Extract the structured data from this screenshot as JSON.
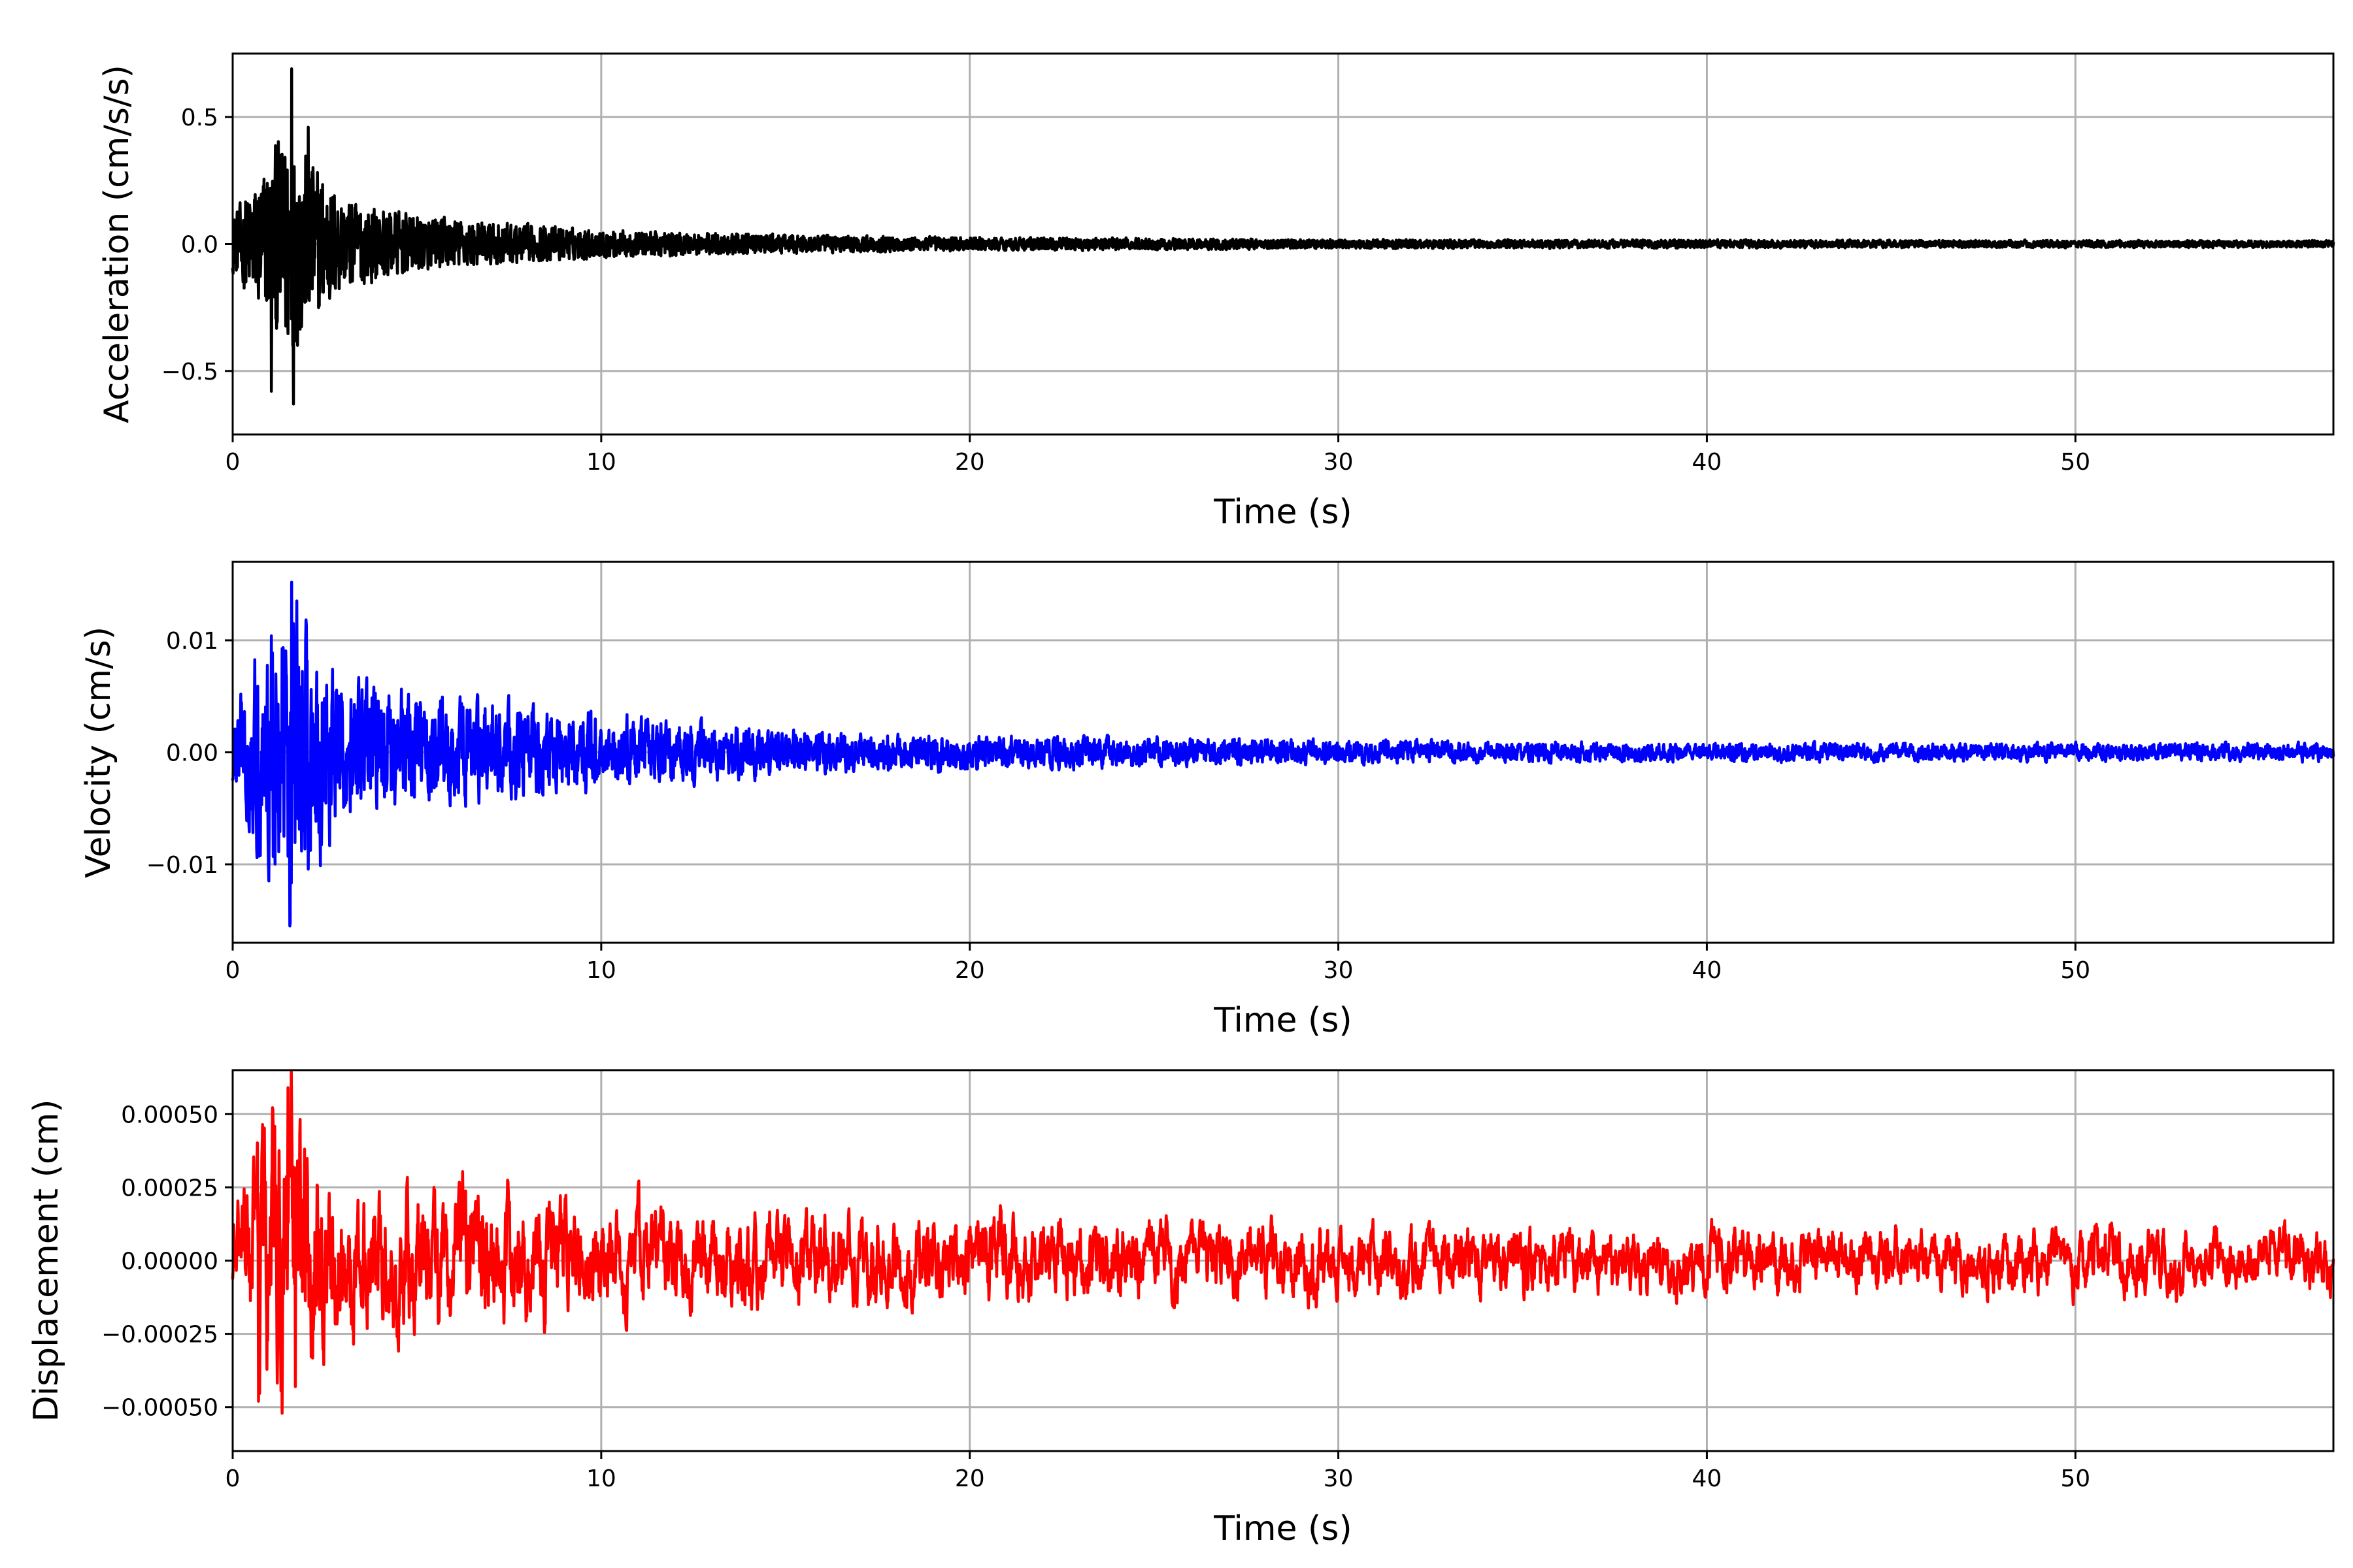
{
  "chart_data": [
    {
      "type": "line",
      "xlabel": "Time (s)",
      "ylabel": "Acceleration (cm/s/s)",
      "xlim": [
        0,
        57
      ],
      "ylim": [
        -0.75,
        0.75
      ],
      "xticks": [
        0,
        10,
        20,
        30,
        40,
        50
      ],
      "yticks": [
        -0.5,
        0.0,
        0.5
      ],
      "ytick_labels": [
        "−0.5",
        "0.0",
        "0.5"
      ],
      "grid": true,
      "color": "#000000",
      "peak_values": [
        {
          "x": 1.6,
          "y": 0.69
        },
        {
          "x": 1.65,
          "y": -0.63
        },
        {
          "x": 1.05,
          "y": -0.58
        },
        {
          "x": 2.05,
          "y": 0.46
        }
      ],
      "envelope": {
        "t": [
          0,
          1.5,
          3,
          5,
          10,
          15,
          20,
          30,
          40,
          57
        ],
        "amp": [
          0.12,
          0.5,
          0.2,
          0.12,
          0.06,
          0.04,
          0.03,
          0.02,
          0.018,
          0.015
        ]
      }
    },
    {
      "type": "line",
      "xlabel": "Time (s)",
      "ylabel": "Velocity (cm/s)",
      "xlim": [
        0,
        57
      ],
      "ylim": [
        -0.017,
        0.017
      ],
      "xticks": [
        0,
        10,
        20,
        30,
        40,
        50
      ],
      "yticks": [
        -0.01,
        0.0,
        0.01
      ],
      "ytick_labels": [
        "−0.01",
        "0.00",
        "0.01"
      ],
      "grid": true,
      "color": "#0000ff",
      "peak_values": [
        {
          "x": 1.6,
          "y": 0.0152
        },
        {
          "x": 1.55,
          "y": -0.0155
        },
        {
          "x": 1.05,
          "y": 0.0104
        },
        {
          "x": 1.1,
          "y": -0.0093
        }
      ],
      "envelope": {
        "t": [
          0,
          1.5,
          3,
          5,
          10,
          15,
          20,
          30,
          40,
          57
        ],
        "amp": [
          0.003,
          0.011,
          0.005,
          0.004,
          0.0025,
          0.0015,
          0.0012,
          0.0008,
          0.0006,
          0.0006
        ]
      }
    },
    {
      "type": "line",
      "xlabel": "Time (s)",
      "ylabel": "Displacement (cm)",
      "xlim": [
        0,
        57
      ],
      "ylim": [
        -0.00065,
        0.00065
      ],
      "xticks": [
        0,
        10,
        20,
        30,
        40,
        50
      ],
      "yticks": [
        -0.0005,
        -0.00025,
        0.0,
        0.00025,
        0.0005
      ],
      "ytick_labels": [
        "−0.00050",
        "−0.00025",
        "0.00000",
        "0.00025",
        "0.00050"
      ],
      "grid": true,
      "color": "#ff0000",
      "peak_values": [
        {
          "x": 1.5,
          "y": 0.00059
        },
        {
          "x": 0.7,
          "y": -0.00048
        },
        {
          "x": 1.1,
          "y": 0.00044
        },
        {
          "x": 1.7,
          "y": -0.00043
        }
      ],
      "envelope": {
        "t": [
          0,
          1.5,
          3,
          5,
          10,
          20,
          30,
          40,
          57
        ],
        "amp": [
          0.0001,
          0.0004,
          0.00015,
          0.00015,
          0.0001,
          8e-05,
          7e-05,
          6e-05,
          6e-05
        ]
      }
    }
  ]
}
